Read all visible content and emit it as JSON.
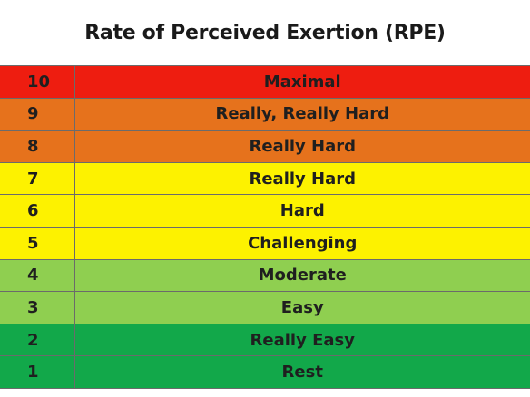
{
  "title": "Rate of Perceived Exertion (RPE)",
  "colors": {
    "red": "#ee1d10",
    "orange": "#e6721c",
    "yellow": "#fdf200",
    "light_green": "#8fcf50",
    "green": "#12a84a"
  },
  "rows": [
    {
      "level": "10",
      "label": "Maximal",
      "color": "#ee1d10"
    },
    {
      "level": "9",
      "label": "Really, Really Hard",
      "color": "#e6721c"
    },
    {
      "level": "8",
      "label": "Really Hard",
      "color": "#e6721c"
    },
    {
      "level": "7",
      "label": "Really Hard",
      "color": "#fdf200"
    },
    {
      "level": "6",
      "label": "Hard",
      "color": "#fdf200"
    },
    {
      "level": "5",
      "label": "Challenging",
      "color": "#fdf200"
    },
    {
      "level": "4",
      "label": "Moderate",
      "color": "#8fcf50"
    },
    {
      "level": "3",
      "label": "Easy",
      "color": "#8fcf50"
    },
    {
      "level": "2",
      "label": "Really Easy",
      "color": "#12a84a"
    },
    {
      "level": "1",
      "label": "Rest",
      "color": "#12a84a"
    }
  ]
}
